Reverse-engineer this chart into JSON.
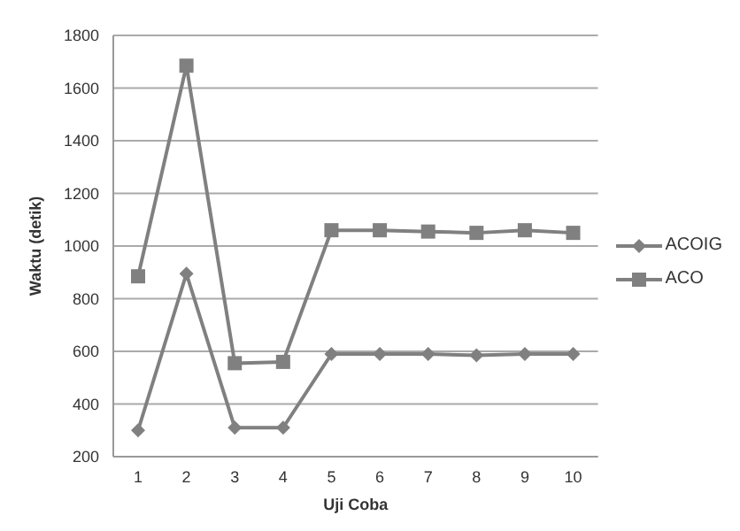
{
  "chart_data": {
    "type": "line",
    "xlabel": "Uji Coba",
    "ylabel": "Waktu (detik)",
    "categories": [
      "1",
      "2",
      "3",
      "4",
      "5",
      "6",
      "7",
      "8",
      "9",
      "10"
    ],
    "series": [
      {
        "name": "ACOIG",
        "color": "#808080",
        "marker": "diamond",
        "values": [
          300,
          895,
          310,
          310,
          590,
          590,
          590,
          585,
          590,
          590
        ]
      },
      {
        "name": "ACO",
        "color": "#808080",
        "marker": "square",
        "values": [
          885,
          1685,
          555,
          560,
          1060,
          1060,
          1055,
          1050,
          1060,
          1050
        ]
      }
    ],
    "ylim": [
      200,
      1800
    ],
    "yticks": [
      200,
      400,
      600,
      800,
      1000,
      1200,
      1400,
      1600,
      1800
    ],
    "grid": "y",
    "legend": "right"
  }
}
